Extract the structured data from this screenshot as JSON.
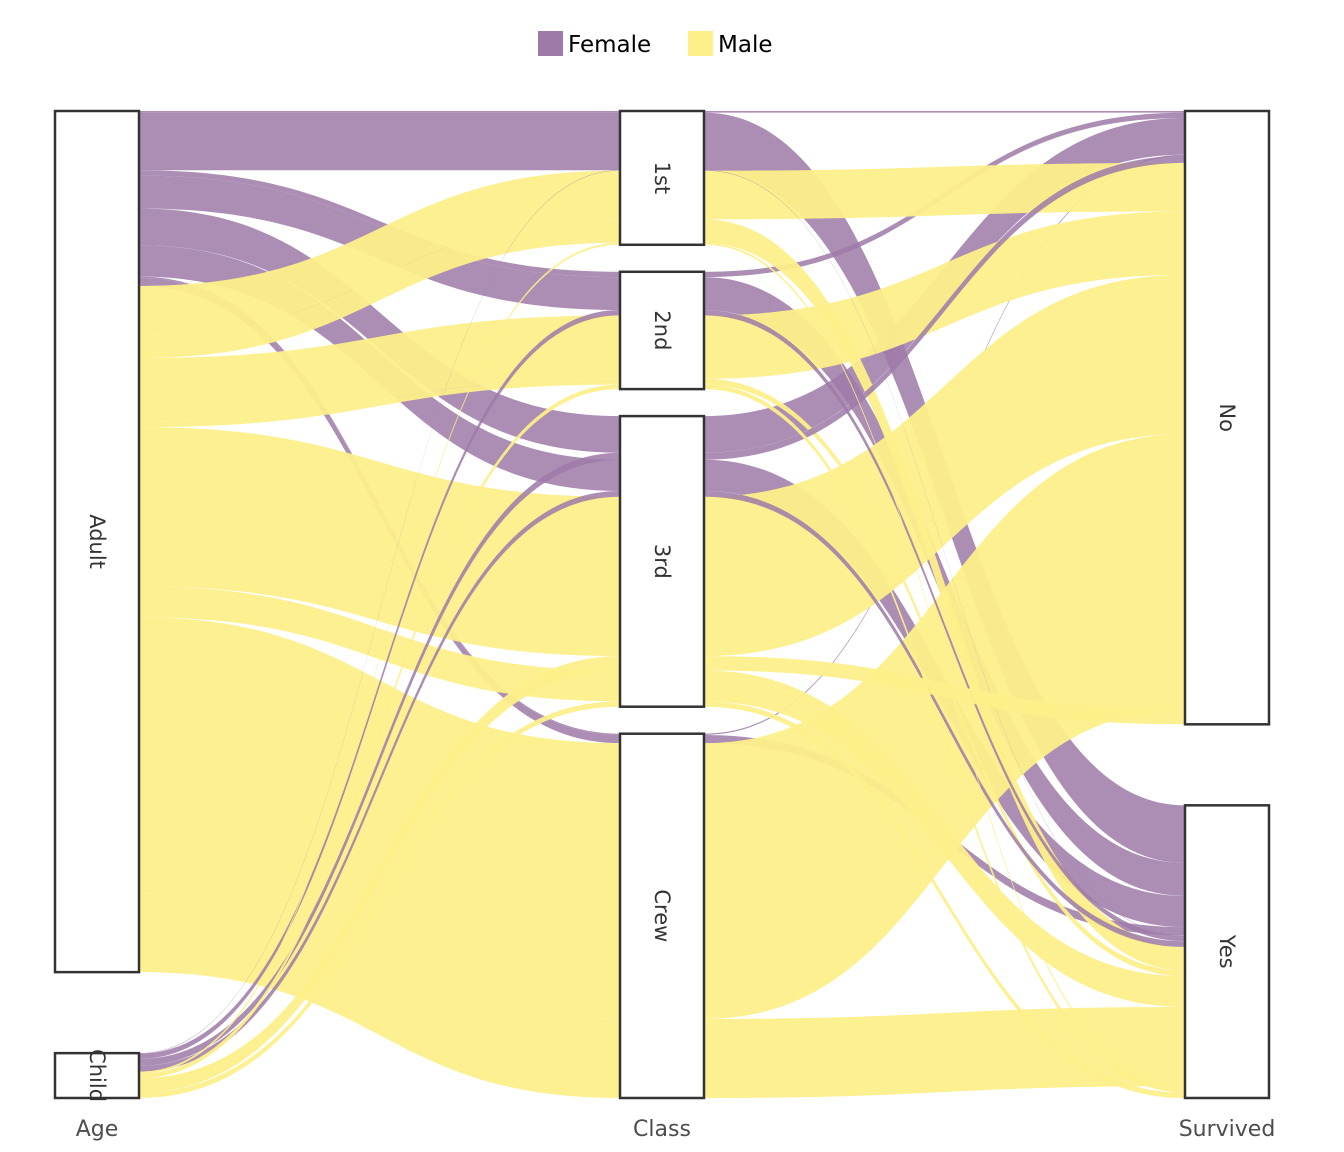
{
  "chart_data": {
    "type": "alluvial",
    "axes": [
      "Age",
      "Class",
      "Survived"
    ],
    "legend": {
      "position": "top",
      "items": [
        {
          "label": "Female",
          "color": "#9e7aa8"
        },
        {
          "label": "Male",
          "color": "#fdef8a"
        }
      ]
    },
    "colors": {
      "Female": "#9e7aa8",
      "Male": "#fdef8a"
    },
    "nodes": {
      "Age": [
        "Adult",
        "Child"
      ],
      "Class": [
        "1st",
        "2nd",
        "3rd",
        "Crew"
      ],
      "Survived": [
        "No",
        "Yes"
      ]
    },
    "flows": [
      {
        "Age": "Adult",
        "Class": "1st",
        "Survived": "No",
        "Sex": "Female",
        "value": 4
      },
      {
        "Age": "Adult",
        "Class": "1st",
        "Survived": "Yes",
        "Sex": "Female",
        "value": 140
      },
      {
        "Age": "Adult",
        "Class": "2nd",
        "Survived": "No",
        "Sex": "Female",
        "value": 13
      },
      {
        "Age": "Adult",
        "Class": "2nd",
        "Survived": "Yes",
        "Sex": "Female",
        "value": 80
      },
      {
        "Age": "Adult",
        "Class": "3rd",
        "Survived": "No",
        "Sex": "Female",
        "value": 89
      },
      {
        "Age": "Adult",
        "Class": "3rd",
        "Survived": "Yes",
        "Sex": "Female",
        "value": 76
      },
      {
        "Age": "Adult",
        "Class": "Crew",
        "Survived": "No",
        "Sex": "Female",
        "value": 3
      },
      {
        "Age": "Adult",
        "Class": "Crew",
        "Survived": "Yes",
        "Sex": "Female",
        "value": 20
      },
      {
        "Age": "Adult",
        "Class": "1st",
        "Survived": "No",
        "Sex": "Male",
        "value": 118
      },
      {
        "Age": "Adult",
        "Class": "1st",
        "Survived": "Yes",
        "Sex": "Male",
        "value": 57
      },
      {
        "Age": "Adult",
        "Class": "2nd",
        "Survived": "No",
        "Sex": "Male",
        "value": 154
      },
      {
        "Age": "Adult",
        "Class": "2nd",
        "Survived": "Yes",
        "Sex": "Male",
        "value": 14
      },
      {
        "Age": "Adult",
        "Class": "3rd",
        "Survived": "No",
        "Sex": "Male",
        "value": 387
      },
      {
        "Age": "Adult",
        "Class": "3rd",
        "Survived": "Yes",
        "Sex": "Male",
        "value": 75
      },
      {
        "Age": "Adult",
        "Class": "Crew",
        "Survived": "No",
        "Sex": "Male",
        "value": 670
      },
      {
        "Age": "Adult",
        "Class": "Crew",
        "Survived": "Yes",
        "Sex": "Male",
        "value": 192
      },
      {
        "Age": "Child",
        "Class": "1st",
        "Survived": "Yes",
        "Sex": "Female",
        "value": 1
      },
      {
        "Age": "Child",
        "Class": "2nd",
        "Survived": "Yes",
        "Sex": "Female",
        "value": 13
      },
      {
        "Age": "Child",
        "Class": "3rd",
        "Survived": "No",
        "Sex": "Female",
        "value": 17
      },
      {
        "Age": "Child",
        "Class": "3rd",
        "Survived": "Yes",
        "Sex": "Female",
        "value": 14
      },
      {
        "Age": "Child",
        "Class": "1st",
        "Survived": "Yes",
        "Sex": "Male",
        "value": 5
      },
      {
        "Age": "Child",
        "Class": "2nd",
        "Survived": "Yes",
        "Sex": "Male",
        "value": 11
      },
      {
        "Age": "Child",
        "Class": "3rd",
        "Survived": "No",
        "Sex": "Male",
        "value": 35
      },
      {
        "Age": "Child",
        "Class": "3rd",
        "Survived": "Yes",
        "Sex": "Male",
        "value": 13
      }
    ]
  }
}
